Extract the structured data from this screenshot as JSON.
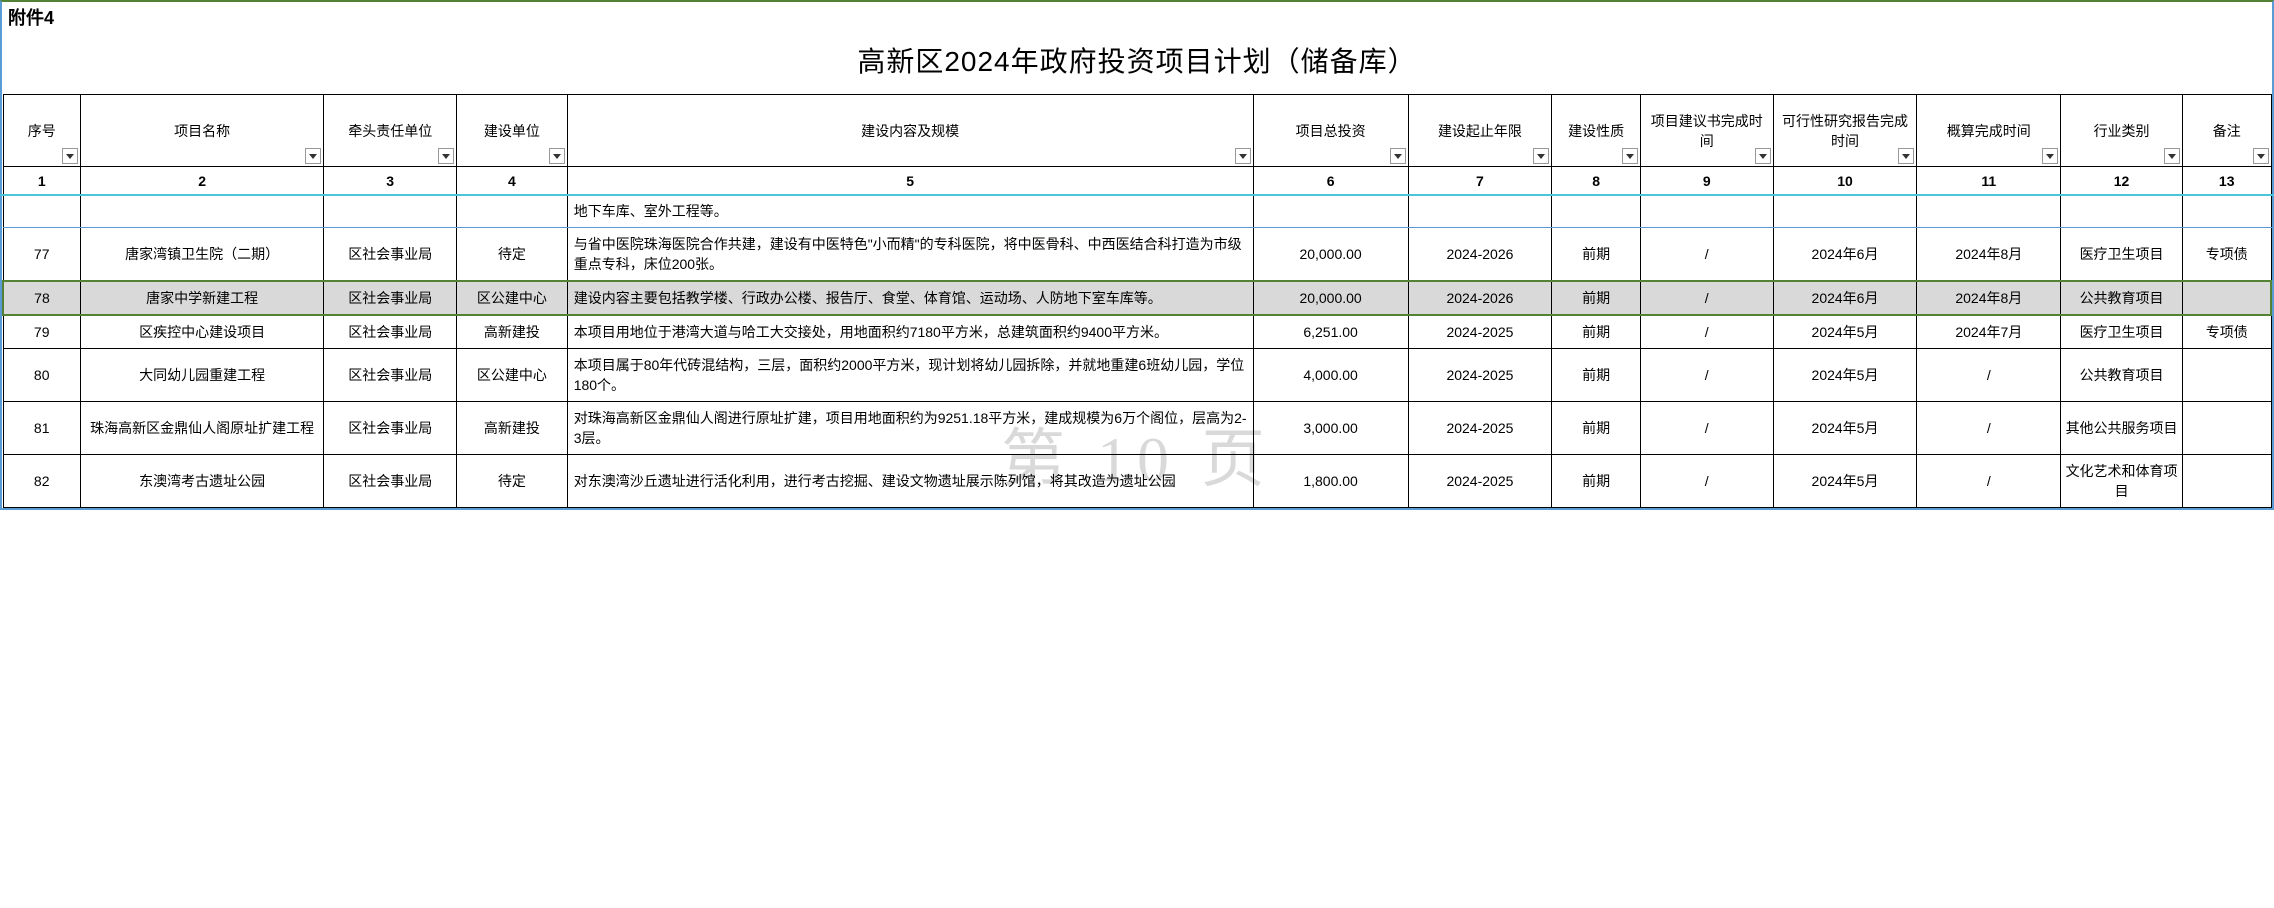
{
  "attachment_label": "附件4",
  "title": "高新区2024年政府投资项目计划（储备库）",
  "watermark": "第 10 页",
  "columns": {
    "widths_pct": [
      3.5,
      11,
      6,
      5,
      31,
      7,
      6.5,
      4,
      6,
      6.5,
      6.5,
      5.5,
      4
    ],
    "headers": [
      "序号",
      "项目名称",
      "牵头责任单位",
      "建设单位",
      "建设内容及规模",
      "项目总投资",
      "建设起止年限",
      "建设性质",
      "项目建议书完成时间",
      "可行性研究报告完成时间",
      "概算完成时间",
      "行业类别",
      "备注"
    ],
    "numbers": [
      "1",
      "2",
      "3",
      "4",
      "5",
      "6",
      "7",
      "8",
      "9",
      "10",
      "11",
      "12",
      "13"
    ]
  },
  "partial_row_content": "地下车库、室外工程等。",
  "rows": [
    {
      "seq": "77",
      "name": "唐家湾镇卫生院（二期）",
      "lead": "区社会事业局",
      "build": "待定",
      "content": "与省中医院珠海医院合作共建，建设有中医特色\"小而精\"的专科医院，将中医骨科、中西医结合科打造为市级重点专科，床位200张。",
      "invest": "20,000.00",
      "period": "2024-2026",
      "nature": "前期",
      "p1": "/",
      "p2": "2024年6月",
      "p3": "2024年8月",
      "cat": "医疗卫生项目",
      "remark": "专项债",
      "hl": false
    },
    {
      "seq": "78",
      "name": "唐家中学新建工程",
      "lead": "区社会事业局",
      "build": "区公建中心",
      "content": "建设内容主要包括教学楼、行政办公楼、报告厅、食堂、体育馆、运动场、人防地下室车库等。",
      "invest": "20,000.00",
      "period": "2024-2026",
      "nature": "前期",
      "p1": "/",
      "p2": "2024年6月",
      "p3": "2024年8月",
      "cat": "公共教育项目",
      "remark": "",
      "hl": true
    },
    {
      "seq": "79",
      "name": "区疾控中心建设项目",
      "lead": "区社会事业局",
      "build": "高新建投",
      "content": "本项目用地位于港湾大道与哈工大交接处，用地面积约7180平方米，总建筑面积约9400平方米。",
      "invest": "6,251.00",
      "period": "2024-2025",
      "nature": "前期",
      "p1": "/",
      "p2": "2024年5月",
      "p3": "2024年7月",
      "cat": "医疗卫生项目",
      "remark": "专项债",
      "hl": false
    },
    {
      "seq": "80",
      "name": "大同幼儿园重建工程",
      "lead": "区社会事业局",
      "build": "区公建中心",
      "content": "本项目属于80年代砖混结构，三层，面积约2000平方米，现计划将幼儿园拆除，并就地重建6班幼儿园，学位180个。",
      "invest": "4,000.00",
      "period": "2024-2025",
      "nature": "前期",
      "p1": "/",
      "p2": "2024年5月",
      "p3": "/",
      "cat": "公共教育项目",
      "remark": "",
      "hl": false
    },
    {
      "seq": "81",
      "name": "珠海高新区金鼎仙人阁原址扩建工程",
      "lead": "区社会事业局",
      "build": "高新建投",
      "content": "对珠海高新区金鼎仙人阁进行原址扩建，项目用地面积约为9251.18平方米，建成规模为6万个阁位，层高为2-3层。",
      "invest": "3,000.00",
      "period": "2024-2025",
      "nature": "前期",
      "p1": "/",
      "p2": "2024年5月",
      "p3": "/",
      "cat": "其他公共服务项目",
      "remark": "",
      "hl": false
    },
    {
      "seq": "82",
      "name": "东澳湾考古遗址公园",
      "lead": "区社会事业局",
      "build": "待定",
      "content": "对东澳湾沙丘遗址进行活化利用，进行考古挖掘、建设文物遗址展示陈列馆，将其改造为遗址公园",
      "invest": "1,800.00",
      "period": "2024-2025",
      "nature": "前期",
      "p1": "/",
      "p2": "2024年5月",
      "p3": "/",
      "cat": "文化艺术和体育项目",
      "remark": "",
      "hl": false
    }
  ],
  "colors": {
    "border_main": "#000000",
    "border_outer": "#5b9bd5",
    "border_green": "#548235",
    "highlight_bg": "#d9d9d9",
    "cyan_line": "#4bc5d8",
    "watermark": "rgba(0,0,0,0.15)"
  }
}
